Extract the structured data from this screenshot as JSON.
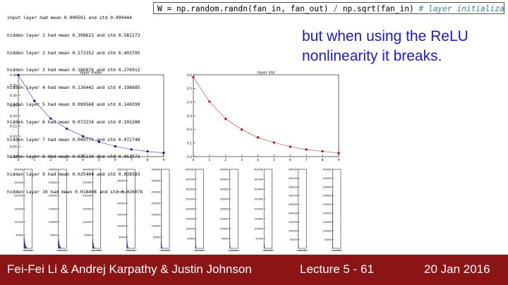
{
  "log_lines": [
    "input layer had mean 0.000501 and std 0.999444",
    "hidden layer 1 had mean 0.398623 and std 0.582273",
    "hidden layer 2 had mean 0.272352 and std 0.403795",
    "hidden layer 3 had mean 0.186076 and std 0.276912",
    "hidden layer 4 had mean 0.136442 and std 0.198685",
    "hidden layer 5 had mean 0.099568 and std 0.140299",
    "hidden layer 6 had mean 0.072234 and std 0.103280",
    "hidden layer 7 had mean 0.049775 and std 0.072748",
    "hidden layer 8 had mean 0.035138 and std 0.051572",
    "hidden layer 9 had mean 0.025404 and std 0.038583",
    "hidden layer 10 had mean 0.018408 and std 0.026076"
  ],
  "code": {
    "part1": "W = np.random.randn(fan_in, fan_out) ",
    "op": "/",
    "part2": " np.sqrt(fan_in) ",
    "comment": "# layer initialization"
  },
  "note": "but when using the ReLU nonlinearity it breaks.",
  "footer": {
    "authors": "Fei-Fei Li & Andrej Karpathy & Justin Johnson",
    "lecture": "Lecture 5 - 61",
    "date": "20 Jan 2016"
  },
  "colors": {
    "mean_line": "#0000cc",
    "std_line": "#cc0000",
    "hist_fill": "#00008b",
    "footer_bg": "#8b1515",
    "note_text": "#1a1ad6"
  },
  "chart_data": [
    {
      "type": "line",
      "title": "layer mean",
      "x": [
        0,
        1,
        2,
        3,
        4,
        5,
        6,
        7,
        8,
        9
      ],
      "y": [
        0.398623,
        0.272352,
        0.186076,
        0.136442,
        0.099568,
        0.072234,
        0.049775,
        0.035138,
        0.025404,
        0.018408
      ],
      "xticks": [
        "0",
        "1",
        "2",
        "3",
        "4",
        "5",
        "6",
        "7",
        "8",
        "9"
      ],
      "yticks": [
        "0.00",
        "0.05",
        "0.10",
        "0.15",
        "0.20",
        "0.25",
        "0.30",
        "0.35",
        "0.40"
      ],
      "xlim": [
        0,
        9
      ],
      "ylim": [
        0,
        0.4
      ],
      "grid": false
    },
    {
      "type": "line",
      "title": "layer std",
      "x": [
        0,
        1,
        2,
        3,
        4,
        5,
        6,
        7,
        8,
        9
      ],
      "y": [
        0.582273,
        0.403795,
        0.276912,
        0.198685,
        0.140299,
        0.10328,
        0.072748,
        0.051572,
        0.038583,
        0.026076
      ],
      "xticks": [
        "0",
        "1",
        "2",
        "3",
        "4",
        "5",
        "6",
        "7",
        "8",
        "9"
      ],
      "yticks": [
        "0.0",
        "0.1",
        "0.2",
        "0.3",
        "0.4",
        "0.5",
        "0.6"
      ],
      "xlim": [
        0,
        9
      ],
      "ylim": [
        0,
        0.6
      ],
      "grid": false
    },
    {
      "type": "bar",
      "description_free": true,
      "panels": [
        {
          "yticks": [
            "50000",
            "100000",
            "150000",
            "200000",
            "250000",
            "300000"
          ],
          "ymax": 300000,
          "values": [
            48000,
            40000,
            34000,
            28000,
            24000,
            20000,
            17000,
            14000,
            11000,
            9000,
            7000,
            5500,
            4200,
            3000,
            2200,
            1500,
            1000,
            700,
            400,
            200
          ]
        },
        {
          "yticks": [
            "50000",
            "100000",
            "150000",
            "200000",
            "250000",
            "300000"
          ],
          "ymax": 300000,
          "values": [
            46000,
            38000,
            32000,
            26000,
            22000,
            18000,
            15000,
            12000,
            9500,
            7500,
            5800,
            4300,
            3200,
            2300,
            1600,
            1000,
            650,
            400,
            200,
            100
          ]
        },
        {
          "yticks": [
            "50000",
            "100000",
            "150000",
            "200000",
            "250000",
            "300000"
          ],
          "ymax": 300000,
          "values": [
            52000,
            36000,
            27000,
            20000,
            15000,
            11000,
            8000,
            5800,
            4100,
            2900,
            2000,
            1400,
            900,
            600,
            350,
            200,
            100,
            60,
            30,
            10
          ]
        },
        {
          "yticks": [
            "50000",
            "100000",
            "150000",
            "200000",
            "250000",
            "300000",
            "350000"
          ],
          "ymax": 350000,
          "values": [
            60000,
            38000,
            26000,
            17000,
            11000,
            7200,
            4700,
            3000,
            1900,
            1200,
            700,
            400,
            220,
            120,
            60,
            30,
            15,
            8,
            4,
            2
          ]
        },
        {
          "yticks": [
            "50000",
            "100000",
            "150000",
            "200000",
            "250000",
            "300000",
            "350000"
          ],
          "ymax": 350000,
          "values": [
            70000,
            32000,
            18000,
            10000,
            5500,
            2900,
            1500,
            800,
            400,
            200,
            100,
            50,
            25,
            12,
            6,
            3,
            1,
            0,
            0,
            0
          ]
        },
        {
          "yticks": [
            "50000",
            "100000",
            "150000",
            "200000",
            "250000",
            "300000",
            "350000",
            "400000"
          ],
          "ymax": 400000,
          "values": [
            90000,
            34000,
            15000,
            6500,
            2800,
            1100,
            450,
            180,
            70,
            25,
            10,
            4,
            1,
            0,
            0,
            0,
            0,
            0,
            0,
            0
          ]
        },
        {
          "yticks": [
            "50000",
            "100000",
            "150000",
            "200000",
            "250000",
            "300000",
            "350000",
            "400000"
          ],
          "ymax": 400000,
          "values": [
            120000,
            30000,
            9500,
            3000,
            900,
            260,
            70,
            20,
            5,
            1,
            0,
            0,
            0,
            0,
            0,
            0,
            0,
            0,
            0,
            0
          ]
        },
        {
          "yticks": [
            "50000",
            "100000",
            "150000",
            "200000",
            "250000",
            "300000",
            "350000",
            "400000"
          ],
          "ymax": 400000,
          "values": [
            170000,
            25000,
            5000,
            900,
            150,
            25,
            4,
            0,
            0,
            0,
            0,
            0,
            0,
            0,
            0,
            0,
            0,
            0,
            0,
            0
          ]
        },
        {
          "yticks": [
            "50000",
            "100000",
            "150000",
            "200000",
            "250000",
            "300000",
            "350000",
            "400000",
            "450000"
          ],
          "ymax": 450000,
          "values": [
            240000,
            18000,
            2000,
            180,
            15,
            1,
            0,
            0,
            0,
            0,
            0,
            0,
            0,
            0,
            0,
            0,
            0,
            0,
            0,
            0
          ]
        },
        {
          "yticks": [
            "50000",
            "100000",
            "150000",
            "200000",
            "250000",
            "300000",
            "350000",
            "400000",
            "450000"
          ],
          "ymax": 450000,
          "values": [
            330000,
            9000,
            500,
            25,
            1,
            0,
            0,
            0,
            0,
            0,
            0,
            0,
            0,
            0,
            0,
            0,
            0,
            0,
            0,
            0
          ]
        }
      ],
      "xticks": [
        "0.0",
        "0.1",
        "0.2",
        "0.3",
        "0.4",
        "0.5"
      ]
    }
  ]
}
